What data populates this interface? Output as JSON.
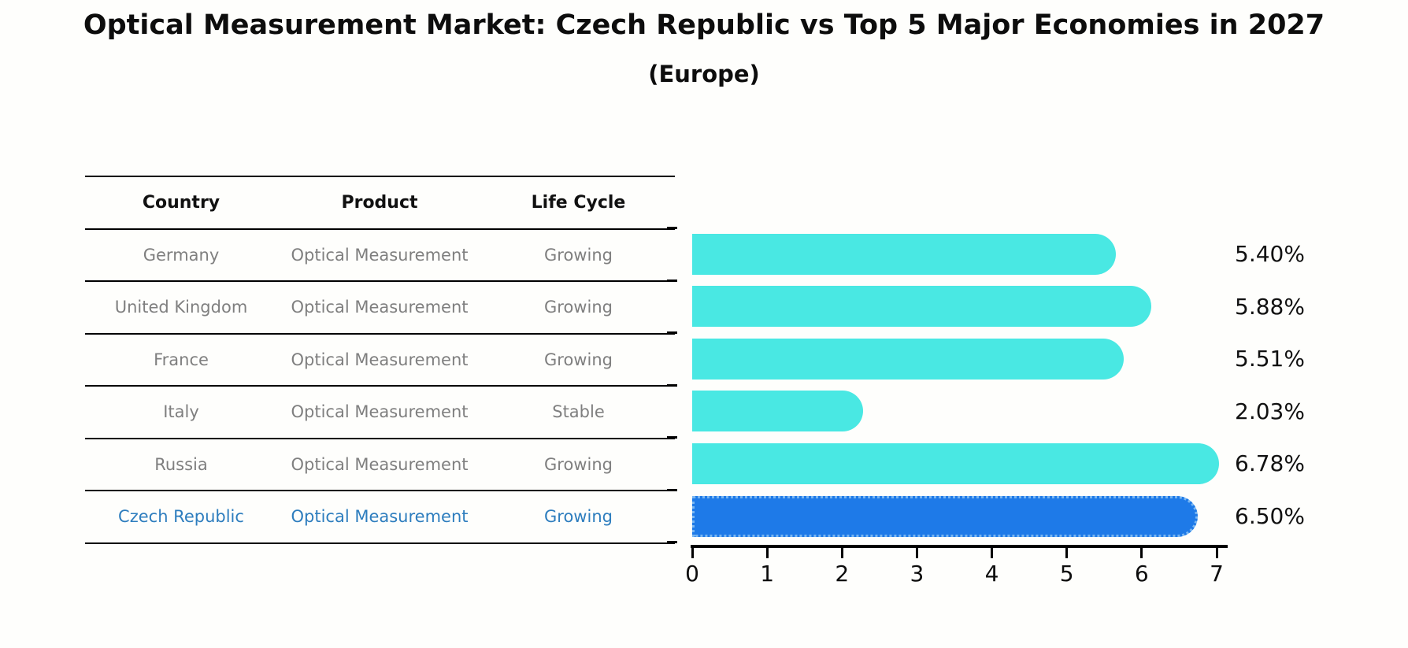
{
  "title": "Optical Measurement Market: Czech Republic vs Top 5 Major Economies in 2027",
  "subtitle": "(Europe)",
  "table": {
    "headers": [
      "Country",
      "Product",
      "Life Cycle"
    ],
    "rows": [
      {
        "country": "Germany",
        "product": "Optical Measurement",
        "life_cycle": "Growing",
        "highlighted": false
      },
      {
        "country": "United Kingdom",
        "product": "Optical Measurement",
        "life_cycle": "Growing",
        "highlighted": false
      },
      {
        "country": "France",
        "product": "Optical Measurement",
        "life_cycle": "Growing",
        "highlighted": false
      },
      {
        "country": "Italy",
        "product": "Optical Measurement",
        "life_cycle": "Stable",
        "highlighted": false
      },
      {
        "country": "Russia",
        "product": "Optical Measurement",
        "life_cycle": "Growing",
        "highlighted": false
      },
      {
        "country": "Czech Republic",
        "product": "Optical Measurement",
        "life_cycle": "Growing",
        "highlighted": true
      }
    ]
  },
  "chart_data": {
    "type": "bar",
    "orientation": "horizontal",
    "title": "Optical Measurement Market: Czech Republic vs Top 5 Major Economies in 2027 (Europe)",
    "categories": [
      "Germany",
      "United Kingdom",
      "France",
      "Italy",
      "Russia",
      "Czech Republic"
    ],
    "values": [
      5.4,
      5.88,
      5.51,
      2.03,
      6.78,
      6.5
    ],
    "value_labels": [
      "5.40%",
      "5.88%",
      "5.51%",
      "2.03%",
      "6.78%",
      "6.50%"
    ],
    "xlim": [
      0,
      7
    ],
    "xticks": [
      "0",
      "1",
      "2",
      "3",
      "4",
      "5",
      "6",
      "7"
    ],
    "grid": false,
    "legend": false,
    "value_label_position": "right",
    "bar_color": "#49e8e3",
    "highlight_color": "#1e7ae8",
    "highlight_edge_color": "#7ab7f2",
    "highlight_index": 5
  },
  "colors": {
    "bar": "#49e8e3",
    "highlight_bar": "#1e7ae8",
    "highlight_text": "#2d7dbe",
    "table_text": "#7f7f7f",
    "header_text": "#111111",
    "axis": "#000000"
  }
}
